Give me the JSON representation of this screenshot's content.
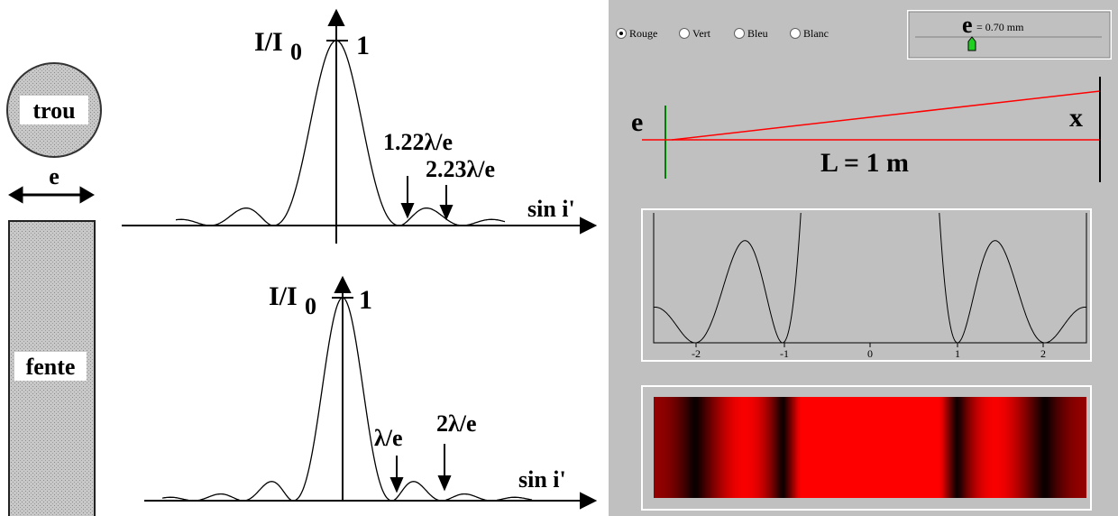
{
  "left": {
    "hole_label": "trou",
    "width_label": "e",
    "slit_label": "fente",
    "top_plot": {
      "y_label": "I/I",
      "y_sub": "0",
      "peak": "1",
      "markers": [
        "1.22λ/e",
        "2.23λ/e"
      ],
      "x_label": "sin i'"
    },
    "bottom_plot": {
      "y_label": "I/I",
      "y_sub": "0",
      "peak": "1",
      "markers": [
        "λ/e",
        "2λ/e"
      ],
      "x_label": "sin i'"
    }
  },
  "right": {
    "colors": [
      "Rouge",
      "Vert",
      "Bleu",
      "Blanc"
    ],
    "slider": {
      "symbol": "e",
      "value": "= 0.70 mm"
    },
    "setup": {
      "slit": "e",
      "screen": "x",
      "distance": "L = 1 m"
    },
    "plot": {
      "ticks": [
        "-2",
        "-1",
        "0",
        "1",
        "2"
      ]
    }
  }
}
